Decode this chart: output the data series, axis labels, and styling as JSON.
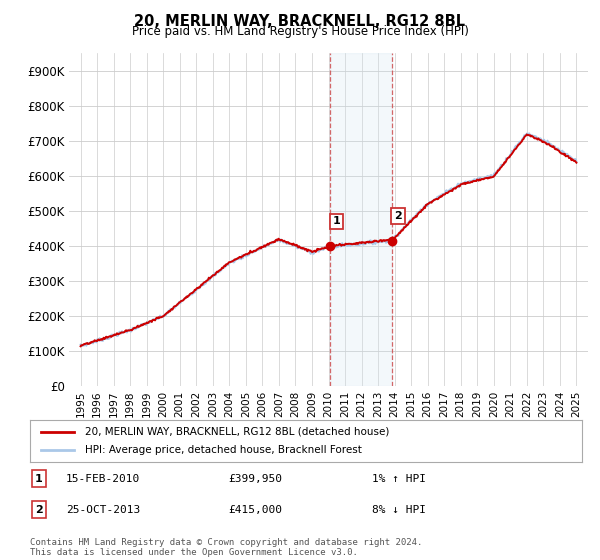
{
  "title": "20, MERLIN WAY, BRACKNELL, RG12 8BL",
  "subtitle": "Price paid vs. HM Land Registry's House Price Index (HPI)",
  "ylim": [
    0,
    950000
  ],
  "yticks": [
    0,
    100000,
    200000,
    300000,
    400000,
    500000,
    600000,
    700000,
    800000,
    900000
  ],
  "ytick_labels": [
    "£0",
    "£100K",
    "£200K",
    "£300K",
    "£400K",
    "£500K",
    "£600K",
    "£700K",
    "£800K",
    "£900K"
  ],
  "hpi_color": "#aac8e8",
  "price_color": "#cc0000",
  "marker_color": "#cc0000",
  "sale1_date": 2010.12,
  "sale1_price": 399950,
  "sale2_date": 2013.82,
  "sale2_price": 415000,
  "shaded_color": "#d0e4f0",
  "legend_line1": "20, MERLIN WAY, BRACKNELL, RG12 8BL (detached house)",
  "legend_line2": "HPI: Average price, detached house, Bracknell Forest",
  "note1_label": "1",
  "note1_date": "15-FEB-2010",
  "note1_price": "£399,950",
  "note1_hpi": "1% ↑ HPI",
  "note2_label": "2",
  "note2_date": "25-OCT-2013",
  "note2_price": "£415,000",
  "note2_hpi": "8% ↓ HPI",
  "footer": "Contains HM Land Registry data © Crown copyright and database right 2024.\nThis data is licensed under the Open Government Licence v3.0.",
  "background_color": "#ffffff",
  "grid_color": "#cccccc"
}
